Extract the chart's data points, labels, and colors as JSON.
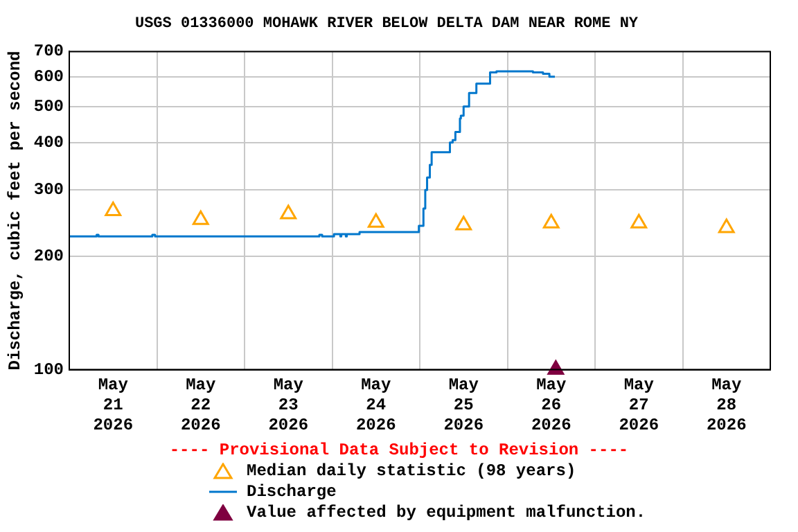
{
  "chart_data": {
    "type": "line",
    "title": "USGS 01336000 MOHAWK RIVER BELOW DELTA DAM NEAR ROME NY",
    "ylabel": "Discharge, cubic feet per second",
    "annotations": [
      "---- Provisional Data Subject to Revision ----"
    ],
    "log": true,
    "grid": true,
    "legend": "bottom",
    "xlim": [
      "2026-05-21T00:00",
      "2026-05-29T00:00"
    ],
    "xticks": [
      {
        "value": "2026-05-21T00:00",
        "label": null
      },
      {
        "value": "2026-05-21T12:00",
        "label": "May\n21\n2026"
      },
      {
        "value": "2026-05-22T00:00",
        "label": null
      },
      {
        "value": "2026-05-22T12:00",
        "label": "May\n22\n2026"
      },
      {
        "value": "2026-05-23T00:00",
        "label": null
      },
      {
        "value": "2026-05-23T12:00",
        "label": "May\n23\n2026"
      },
      {
        "value": "2026-05-24T00:00",
        "label": null
      },
      {
        "value": "2026-05-24T12:00",
        "label": "May\n24\n2026"
      },
      {
        "value": "2026-05-25T00:00",
        "label": null
      },
      {
        "value": "2026-05-25T12:00",
        "label": "May\n25\n2026"
      },
      {
        "value": "2026-05-26T00:00",
        "label": null
      },
      {
        "value": "2026-05-26T12:00",
        "label": "May\n26\n2026"
      },
      {
        "value": "2026-05-27T00:00",
        "label": null
      },
      {
        "value": "2026-05-27T12:00",
        "label": "May\n27\n2026"
      },
      {
        "value": "2026-05-28T00:00",
        "label": null
      },
      {
        "value": "2026-05-28T12:00",
        "label": "May\n28\n2026"
      },
      {
        "value": "2026-05-29T00:00",
        "label": null
      }
    ],
    "ylim": [
      100,
      700
    ],
    "yticks": [
      100,
      200,
      300,
      400,
      500,
      600,
      700
    ],
    "series": [
      {
        "name": "Median daily statistic (98 years)",
        "type": "scatter",
        "marker": "triangle",
        "color": "#ffa500",
        "x": [
          "2026-05-21T12:00",
          "2026-05-22T12:00",
          "2026-05-23T12:00",
          "2026-05-24T12:00",
          "2026-05-25T12:00",
          "2026-05-26T12:00",
          "2026-05-27T12:00",
          "2026-05-28T12:00"
        ],
        "values": [
          264,
          250,
          259,
          246,
          242,
          245,
          245,
          238
        ]
      },
      {
        "name": "Discharge",
        "type": "step",
        "marker": "none",
        "color": "#0077cc",
        "x": [
          "2026-05-21T00:00",
          "2026-05-21T07:30",
          "2026-05-21T08:00",
          "2026-05-21T22:45",
          "2026-05-21T23:30",
          "2026-05-23T20:30",
          "2026-05-23T21:15",
          "2026-05-24T00:30",
          "2026-05-24T02:15",
          "2026-05-24T02:30",
          "2026-05-24T03:45",
          "2026-05-24T04:00",
          "2026-05-24T07:30",
          "2026-05-24T23:45",
          "2026-05-25T01:00",
          "2026-05-25T01:30",
          "2026-05-25T02:00",
          "2026-05-25T02:45",
          "2026-05-25T03:15",
          "2026-05-25T08:15",
          "2026-05-25T09:00",
          "2026-05-25T09:45",
          "2026-05-25T11:00",
          "2026-05-25T11:15",
          "2026-05-25T12:00",
          "2026-05-25T13:30",
          "2026-05-25T15:30",
          "2026-05-25T19:15",
          "2026-05-25T21:00",
          "2026-05-26T07:00",
          "2026-05-26T09:45",
          "2026-05-26T11:30",
          "2026-05-26T13:00"
        ],
        "values": [
          226,
          228,
          226,
          228,
          226,
          228,
          226,
          229,
          226,
          229,
          226,
          229,
          232,
          241,
          268,
          300,
          324,
          350,
          378,
          401,
          407,
          428,
          465,
          473,
          500,
          543,
          575,
          616,
          620,
          616,
          611,
          600,
          600
        ]
      },
      {
        "name": "Value affected by equipment malfunction.",
        "type": "scatter",
        "marker": "triangle",
        "color": "#7f0040",
        "x": [
          "2026-05-26T13:15"
        ],
        "values": [
          100
        ]
      }
    ]
  }
}
